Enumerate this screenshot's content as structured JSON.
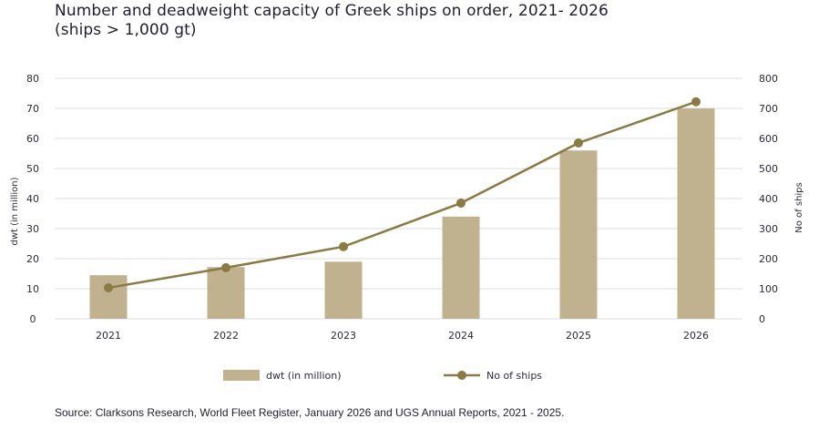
{
  "title_line1": "Number and deadweight capacity of Greek ships on order, 2021- 2026",
  "title_line2": "(ships > 1,000 gt)",
  "source": "Source: Clarksons Research, World Fleet Register, January 2026 and UGS Annual Reports, 2021 - 2025.",
  "colors": {
    "bar": "#c0b18f",
    "line": "#8a7b45",
    "grid": "#dedede",
    "text": "#2b2b3a"
  },
  "chart_data": {
    "type": "bar",
    "categories": [
      "2021",
      "2022",
      "2023",
      "2024",
      "2025",
      "2026"
    ],
    "series": [
      {
        "name": "dwt (in million)",
        "type": "bar",
        "axis": "left",
        "values": [
          14.5,
          17.2,
          19,
          34,
          56,
          70
        ]
      },
      {
        "name": "No of ships",
        "type": "line",
        "axis": "right",
        "values": [
          103,
          170,
          240,
          385,
          585,
          722
        ]
      }
    ],
    "ylabel": "dwt (in million)",
    "y2label": "No of ships",
    "ylim": [
      0,
      80
    ],
    "y2lim": [
      0,
      800
    ],
    "yticks": [
      "0",
      "10",
      "20",
      "30",
      "40",
      "50",
      "60",
      "70",
      "80"
    ],
    "y2ticks": [
      "0",
      "100",
      "200",
      "300",
      "400",
      "500",
      "600",
      "700",
      "800"
    ],
    "grid": true,
    "legend_position": "bottom"
  }
}
